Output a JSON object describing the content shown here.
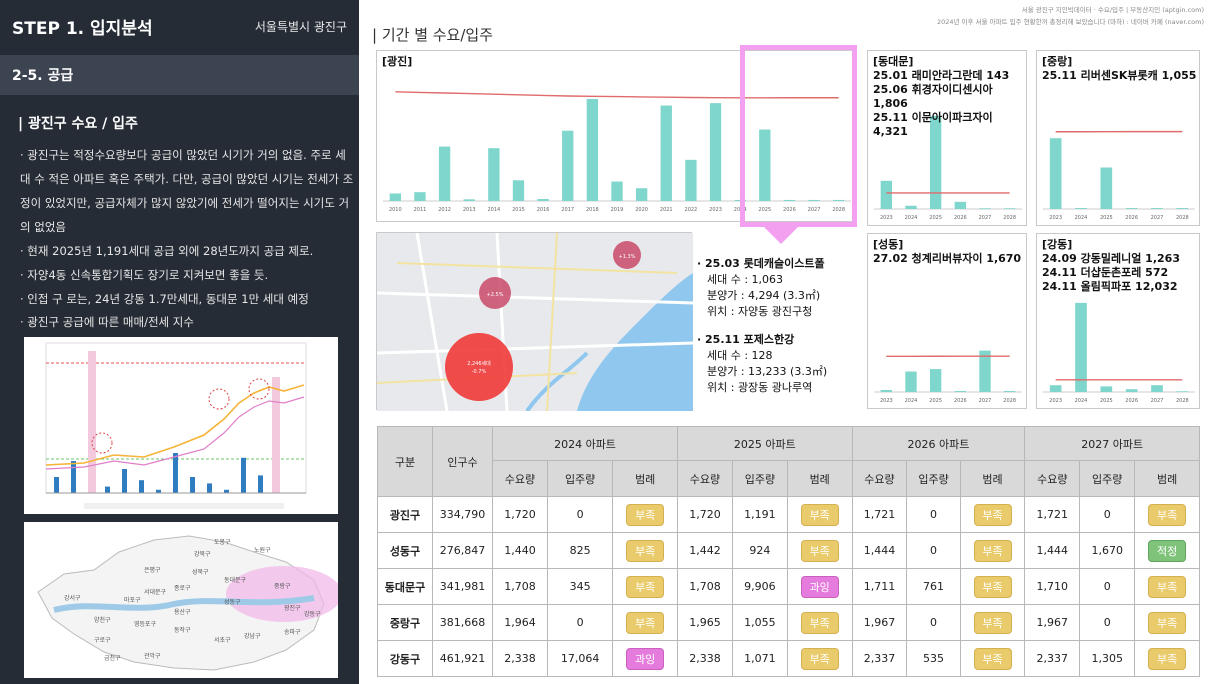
{
  "sidebar": {
    "step_title": "STEP 1. 입지분석",
    "region": "서울특별시 광진구",
    "subsection": "2-5. 공급",
    "heading": "| 광진구 수요 / 입주",
    "bullets": [
      "· 광진구는 적정수요량보다 공급이 많았던 시기가 거의 없음. 주로 세대 수 적은 아파트 혹은 주택가. 다만, 공급이 많았던 시기는 전세가 조정이 있었지만, 공급자체가 많지 않았기에 전세가 떨어지는 시기도 거의 없었음",
      "· 현재 2025년 1,191세대 공급 외에 28년도까지 공급 제로.",
      "· 자양4동 신속통합기획도 장기로 지켜보면 좋을 듯.",
      "· 인접 구 로는, 24년 강동 1.7만세대, 동대문 1만 세대 예정"
    ],
    "chart_caption": "· 광진구 공급에 따른 매매/전세 지수",
    "map_labels": [
      "도봉구",
      "강북구",
      "노원구",
      "성북구",
      "중랑구",
      "동대문구",
      "은평구",
      "종로구",
      "광진구",
      "서대문구",
      "마포구",
      "용산구",
      "성동구",
      "강동구",
      "강서구",
      "양천구",
      "영등포구",
      "동작구",
      "서초구",
      "강남구",
      "송파구",
      "구로구",
      "관악구",
      "금천구"
    ]
  },
  "header": {
    "title": "| 기간 별 수요/입주",
    "source_line1": "서울 광진구 지인빅데이터 · 수요/입주 | 부동산지인 (aptgin.com)",
    "source_line2": "2024년 이후 서울 아파트 입주 현황한꺼 총정리해 보았습니다 (마하) : 네이버 카페 (naver.com)"
  },
  "map_area": {
    "circle_labels": [
      "2,246세대",
      "+1.3%",
      "+2.5%",
      "-0.7%"
    ]
  },
  "projects": [
    {
      "head": "· 25.03 롯데캐슬이스트폴",
      "rows": [
        "세대 수 : 1,063",
        "분양가 : 4,294 (3.3㎡)",
        "위치 : 자양동 광진구청"
      ]
    },
    {
      "head": "· 25.11 포제스한강",
      "rows": [
        "세대 수 : 128",
        "분양가 : 13,233 (3.3㎡)",
        "위치 : 광장동 광나루역"
      ]
    }
  ],
  "chart_data": [
    {
      "type": "bar",
      "title": "[광진]",
      "categories": [
        "2010",
        "2011",
        "2012",
        "2013",
        "2014",
        "2015",
        "2016",
        "2017",
        "2018",
        "2019",
        "2020",
        "2021",
        "2022",
        "2023",
        "2024",
        "2025",
        "2026",
        "2027",
        "2028"
      ],
      "values": [
        126,
        147,
        907,
        28,
        880,
        345,
        33,
        1171,
        1701,
        324,
        213,
        1591,
        686,
        1631,
        0,
        1191,
        0,
        0,
        0
      ],
      "series_line": {
        "values": [
          1820,
          1810,
          1800,
          1790,
          1780,
          1770,
          1760,
          1750,
          1745,
          1740,
          1735,
          1730,
          1725,
          1722,
          1720,
          1720,
          1721,
          1721,
          1721
        ]
      },
      "ylim": [
        0,
        2200
      ],
      "colors": {
        "bar": "#7fd6cc",
        "line": "#e06b6b"
      }
    },
    {
      "type": "bar",
      "title": "[동대문]",
      "notes": [
        "25.01 래미안라그란데 143",
        "25.06 휘경자이디센시아1,806",
        "25.11 이문아이파크자이4,321"
      ],
      "categories": [
        "2023",
        "2024",
        "2025",
        "2026",
        "2027",
        "2028"
      ],
      "values": [
        3000,
        345,
        9906,
        761,
        0,
        0
      ],
      "series_line": {
        "values": [
          1710,
          1708,
          1708,
          1711,
          1710,
          1710
        ]
      },
      "ylim": [
        0,
        10000
      ],
      "colors": {
        "bar": "#7fd6cc",
        "line": "#e06b6b"
      }
    },
    {
      "type": "bar",
      "title": "[중랑]",
      "notes": [
        "25.11 리버센SK뷰롯캐 1,055"
      ],
      "categories": [
        "2023",
        "2024",
        "2025",
        "2026",
        "2027",
        "2028"
      ],
      "values": [
        1800,
        0,
        1055,
        0,
        0,
        0
      ],
      "series_line": {
        "values": [
          1964,
          1964,
          1965,
          1967,
          1967,
          1967
        ]
      },
      "ylim": [
        0,
        3000
      ],
      "colors": {
        "bar": "#7fd6cc",
        "line": "#e06b6b"
      }
    },
    {
      "type": "bar",
      "title": "[성동]",
      "notes": [
        "27.02 청계리버뷰자이 1,670"
      ],
      "categories": [
        "2023",
        "2024",
        "2025",
        "2026",
        "2027",
        "2028"
      ],
      "values": [
        80,
        825,
        924,
        0,
        1670,
        0
      ],
      "series_line": {
        "values": [
          1440,
          1440,
          1442,
          1444,
          1444,
          1444
        ]
      },
      "ylim": [
        0,
        5000
      ],
      "colors": {
        "bar": "#7fd6cc",
        "line": "#e06b6b"
      }
    },
    {
      "type": "bar",
      "title": "[강동]",
      "notes": [
        "24.09 강동밀레니얼 1,263",
        "24.11 더샵둔촌포레 572",
        "24.11 올림픽파포 12,032"
      ],
      "categories": [
        "2023",
        "2024",
        "2025",
        "2026",
        "2027",
        "2028"
      ],
      "values": [
        1300,
        17064,
        1071,
        535,
        1305,
        0
      ],
      "series_line": {
        "values": [
          2338,
          2338,
          2338,
          2337,
          2337,
          2337
        ]
      },
      "ylim": [
        0,
        18000
      ],
      "colors": {
        "bar": "#7fd6cc",
        "line": "#e06b6b"
      }
    }
  ],
  "table": {
    "headers": {
      "district": "구분",
      "population": "인구수",
      "y2024": "2024 아파트",
      "y2025": "2025 아파트",
      "y2026": "2026 아파트",
      "y2027": "2027 아파트",
      "demand": "수요량",
      "supply": "입주량",
      "legend": "범례"
    },
    "rows": [
      {
        "name": "광진구",
        "pop": "334,790",
        "cells": [
          [
            "1,720",
            "0",
            "부족"
          ],
          [
            "1,720",
            "1,191",
            "부족"
          ],
          [
            "1,721",
            "0",
            "부족"
          ],
          [
            "1,721",
            "0",
            "부족"
          ]
        ]
      },
      {
        "name": "성동구",
        "pop": "276,847",
        "cells": [
          [
            "1,440",
            "825",
            "부족"
          ],
          [
            "1,442",
            "924",
            "부족"
          ],
          [
            "1,444",
            "0",
            "부족"
          ],
          [
            "1,444",
            "1,670",
            "적정"
          ]
        ]
      },
      {
        "name": "동대문구",
        "pop": "341,981",
        "cells": [
          [
            "1,708",
            "345",
            "부족"
          ],
          [
            "1,708",
            "9,906",
            "과잉"
          ],
          [
            "1,711",
            "761",
            "부족"
          ],
          [
            "1,710",
            "0",
            "부족"
          ]
        ]
      },
      {
        "name": "중랑구",
        "pop": "381,668",
        "cells": [
          [
            "1,964",
            "0",
            "부족"
          ],
          [
            "1,965",
            "1,055",
            "부족"
          ],
          [
            "1,967",
            "0",
            "부족"
          ],
          [
            "1,967",
            "0",
            "부족"
          ]
        ]
      },
      {
        "name": "강동구",
        "pop": "461,921",
        "cells": [
          [
            "2,338",
            "17,064",
            "과잉"
          ],
          [
            "2,338",
            "1,071",
            "부족"
          ],
          [
            "2,337",
            "535",
            "부족"
          ],
          [
            "2,337",
            "1,305",
            "부족"
          ]
        ]
      }
    ],
    "badge_colors": {
      "부족": "#e9cb6c",
      "과잉": "#e57bdc",
      "적정": "#7fc27a"
    }
  }
}
